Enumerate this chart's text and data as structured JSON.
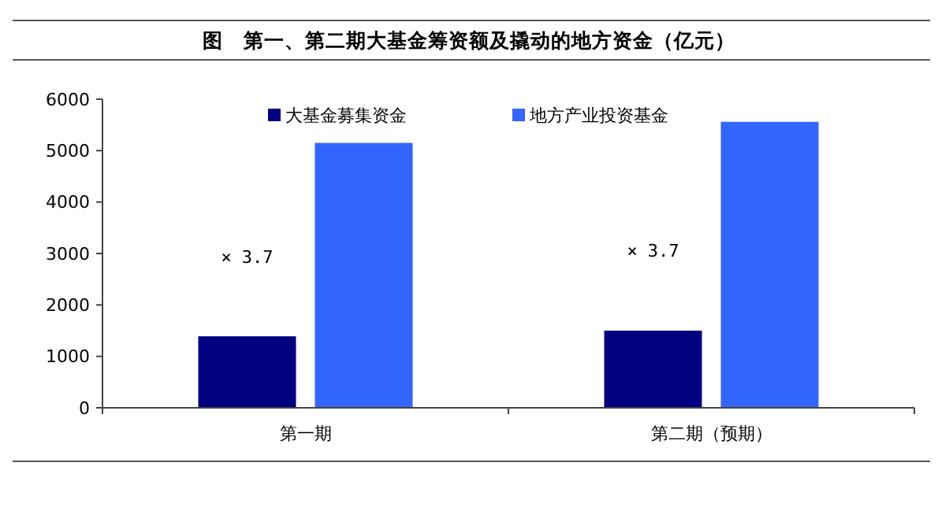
{
  "chart_data": {
    "type": "bar",
    "title": "图　第一、第二期大基金筹资额及撬动的地方资金（亿元）",
    "categories": [
      "第一期",
      "第二期（预期）"
    ],
    "series": [
      {
        "name": "大基金募集资金",
        "color": "#000080",
        "values": [
          1390,
          1500
        ]
      },
      {
        "name": "地方产业投资基金",
        "color": "#3366ff",
        "values": [
          5150,
          5560
        ]
      }
    ],
    "ylim": [
      0,
      6000
    ],
    "yticks": [
      0,
      1000,
      2000,
      3000,
      4000,
      5000,
      6000
    ],
    "grid": false,
    "legend": "top",
    "annotations": [
      "× 3.7",
      "× 3.7"
    ]
  }
}
